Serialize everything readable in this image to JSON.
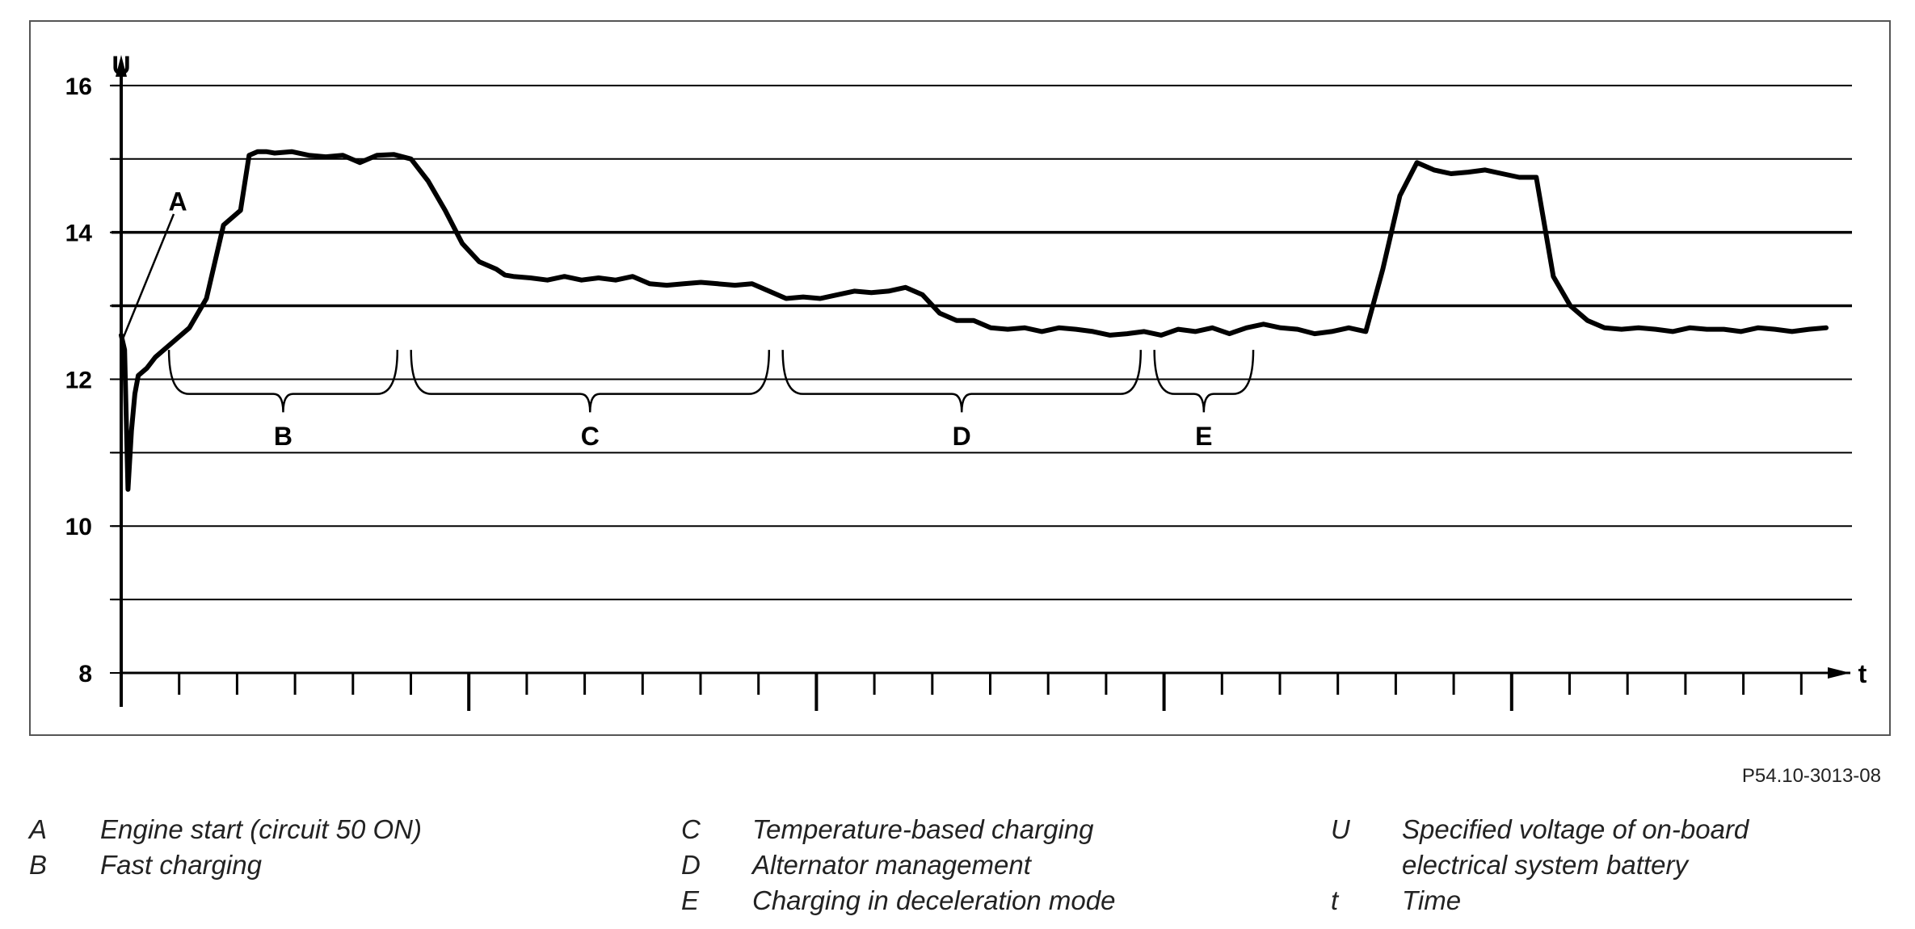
{
  "figure_id": "P54.10-3013-08",
  "chart_data": {
    "type": "line",
    "title": "",
    "ylabel": "U",
    "xlabel": "t",
    "ylim": [
      8,
      17
    ],
    "grid": true,
    "y_ticks": [
      {
        "value": 16,
        "label": "16"
      },
      {
        "value": 15,
        "label": ""
      },
      {
        "value": 14,
        "label": "14"
      },
      {
        "value": 13,
        "label": ""
      },
      {
        "value": 12,
        "label": "12"
      },
      {
        "value": 11,
        "label": ""
      },
      {
        "value": 10,
        "label": "10"
      },
      {
        "value": 9,
        "label": ""
      },
      {
        "value": 8,
        "label": "8"
      }
    ],
    "x_tick_count": 29,
    "x_major_tick_every": 6,
    "series": [
      {
        "x": [
          0,
          0.2,
          0.4,
          0.6,
          0.8,
          1.0,
          1.5,
          2,
          3,
          4,
          5,
          6,
          7,
          7.5,
          8,
          8.5,
          9,
          10,
          11,
          12,
          13,
          14,
          15,
          16,
          17,
          18,
          19,
          20,
          21,
          22,
          22.5,
          23,
          24,
          25,
          26,
          27,
          28,
          29,
          30,
          31,
          32,
          33,
          34,
          35,
          36,
          37,
          38,
          39,
          40,
          41,
          42,
          43,
          44,
          45,
          46,
          47,
          48,
          49,
          50,
          51,
          52,
          53,
          54,
          55,
          56,
          57,
          58,
          59,
          60,
          61,
          62,
          63,
          64,
          65,
          66,
          67,
          68,
          69,
          70,
          71,
          72,
          73,
          74,
          75,
          76,
          77,
          78,
          79,
          80,
          81,
          82,
          83,
          84,
          85,
          86,
          87,
          88,
          89,
          90,
          91,
          92,
          93,
          94,
          95,
          96,
          97,
          98,
          99,
          100
        ],
        "y": [
          12.6,
          12.4,
          10.5,
          11.3,
          11.8,
          12.05,
          12.15,
          12.3,
          12.5,
          12.7,
          13.1,
          14.1,
          14.3,
          15.05,
          15.1,
          15.1,
          15.08,
          15.1,
          15.05,
          15.03,
          15.05,
          14.95,
          15.05,
          15.06,
          15.0,
          14.7,
          14.3,
          13.85,
          13.6,
          13.5,
          13.42,
          13.4,
          13.38,
          13.35,
          13.4,
          13.35,
          13.38,
          13.35,
          13.4,
          13.3,
          13.28,
          13.3,
          13.32,
          13.3,
          13.28,
          13.3,
          13.2,
          13.1,
          13.12,
          13.1,
          13.15,
          13.2,
          13.18,
          13.2,
          13.25,
          13.15,
          12.9,
          12.8,
          12.8,
          12.7,
          12.68,
          12.7,
          12.65,
          12.7,
          12.68,
          12.65,
          12.6,
          12.62,
          12.65,
          12.6,
          12.68,
          12.65,
          12.7,
          12.62,
          12.7,
          12.75,
          12.7,
          12.68,
          12.62,
          12.65,
          12.7,
          12.65,
          13.5,
          14.5,
          14.95,
          14.85,
          14.8,
          14.82,
          14.85,
          14.8,
          14.75,
          14.75,
          13.4,
          13.0,
          12.8,
          12.7,
          12.68,
          12.7,
          12.68,
          12.65,
          12.7,
          12.68,
          12.68,
          12.65,
          12.7,
          12.68,
          12.65,
          12.68,
          12.7
        ]
      }
    ],
    "annotations": [
      {
        "label": "A"
      },
      {
        "label": "B"
      },
      {
        "label": "C"
      },
      {
        "label": "D"
      },
      {
        "label": "E"
      }
    ]
  },
  "legend": [
    {
      "key": "A",
      "text": "Engine start (circuit 50 ON)"
    },
    {
      "key": "B",
      "text": "Fast charging"
    },
    {
      "key": "C",
      "text": "Temperature-based charging"
    },
    {
      "key": "D",
      "text": "Alternator management"
    },
    {
      "key": "E",
      "text": "Charging in deceleration mode"
    },
    {
      "key": "U",
      "text": "Specified voltage of on-board electrical system battery"
    },
    {
      "key": "t",
      "text": "Time"
    }
  ]
}
